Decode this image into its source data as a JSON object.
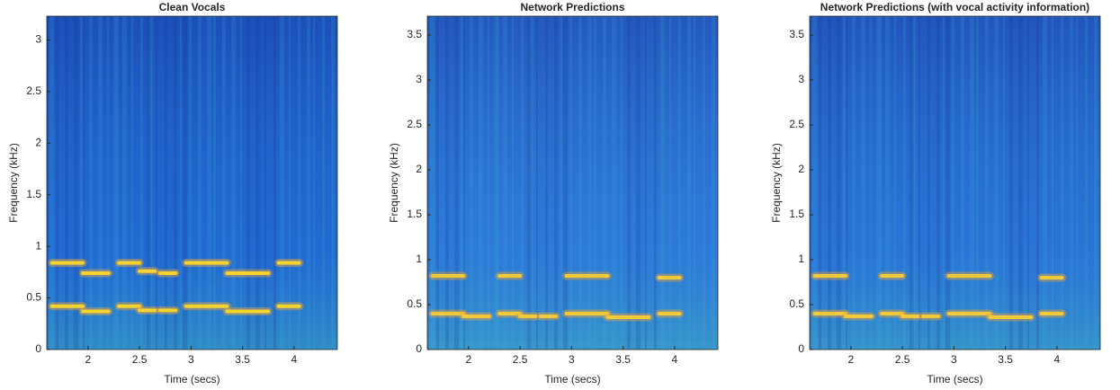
{
  "chart_data": [
    {
      "type": "spectrogram",
      "title": "Clean Vocals",
      "x_label": "Time (secs)",
      "y_label": "Frequency (kHz)",
      "xlim": [
        1.6,
        4.42
      ],
      "xticks": [
        2,
        2.5,
        3,
        3.5,
        4
      ],
      "ylim": [
        0,
        3.23
      ],
      "yticks": [
        0,
        0.5,
        1,
        1.5,
        2,
        2.5,
        3
      ],
      "background_color": "#1f62d0",
      "trace_color": "#f7d330",
      "traces": [
        {
          "x": [
            1.65,
            1.95
          ],
          "y": [
            0.42,
            0.42
          ]
        },
        {
          "x": [
            1.95,
            2.2
          ],
          "y": [
            0.37,
            0.37
          ]
        },
        {
          "x": [
            2.3,
            2.5
          ],
          "y": [
            0.42,
            0.42
          ]
        },
        {
          "x": [
            2.5,
            2.65
          ],
          "y": [
            0.38,
            0.38
          ]
        },
        {
          "x": [
            2.7,
            2.85
          ],
          "y": [
            0.38,
            0.38
          ]
        },
        {
          "x": [
            2.95,
            3.35
          ],
          "y": [
            0.42,
            0.42
          ]
        },
        {
          "x": [
            3.35,
            3.75
          ],
          "y": [
            0.37,
            0.37
          ]
        },
        {
          "x": [
            3.85,
            4.05
          ],
          "y": [
            0.42,
            0.42
          ]
        },
        {
          "x": [
            1.65,
            1.95
          ],
          "y": [
            0.84,
            0.84
          ]
        },
        {
          "x": [
            1.95,
            2.2
          ],
          "y": [
            0.74,
            0.74
          ]
        },
        {
          "x": [
            2.3,
            2.5
          ],
          "y": [
            0.84,
            0.84
          ]
        },
        {
          "x": [
            2.5,
            2.65
          ],
          "y": [
            0.76,
            0.76
          ]
        },
        {
          "x": [
            2.7,
            2.85
          ],
          "y": [
            0.74,
            0.74
          ]
        },
        {
          "x": [
            2.95,
            3.35
          ],
          "y": [
            0.84,
            0.84
          ]
        },
        {
          "x": [
            3.35,
            3.75
          ],
          "y": [
            0.74,
            0.74
          ]
        },
        {
          "x": [
            3.85,
            4.05
          ],
          "y": [
            0.84,
            0.84
          ]
        }
      ]
    },
    {
      "type": "spectrogram",
      "title": "Network Predictions",
      "x_label": "Time (secs)",
      "y_label": "Frequency (kHz)",
      "xlim": [
        1.6,
        4.42
      ],
      "xticks": [
        2,
        2.5,
        3,
        3.5,
        4
      ],
      "ylim": [
        0,
        3.71
      ],
      "yticks": [
        0,
        0.5,
        1,
        1.5,
        2,
        2.5,
        3,
        3.5
      ],
      "background_color": "#2f78d8",
      "trace_color": "#f4c93a",
      "traces": [
        {
          "x": [
            1.65,
            1.95
          ],
          "y": [
            0.4,
            0.4
          ]
        },
        {
          "x": [
            1.95,
            2.2
          ],
          "y": [
            0.37,
            0.37
          ]
        },
        {
          "x": [
            2.3,
            2.5
          ],
          "y": [
            0.4,
            0.4
          ]
        },
        {
          "x": [
            2.5,
            2.65
          ],
          "y": [
            0.37,
            0.37
          ]
        },
        {
          "x": [
            2.7,
            2.85
          ],
          "y": [
            0.37,
            0.37
          ]
        },
        {
          "x": [
            2.95,
            3.35
          ],
          "y": [
            0.4,
            0.4
          ]
        },
        {
          "x": [
            3.35,
            3.75
          ],
          "y": [
            0.36,
            0.36
          ]
        },
        {
          "x": [
            3.85,
            4.05
          ],
          "y": [
            0.4,
            0.4
          ]
        },
        {
          "x": [
            1.65,
            1.95
          ],
          "y": [
            0.82,
            0.82
          ]
        },
        {
          "x": [
            2.3,
            2.5
          ],
          "y": [
            0.82,
            0.82
          ]
        },
        {
          "x": [
            2.95,
            3.35
          ],
          "y": [
            0.82,
            0.82
          ]
        },
        {
          "x": [
            3.85,
            4.05
          ],
          "y": [
            0.8,
            0.8
          ]
        }
      ]
    },
    {
      "type": "spectrogram",
      "title": "Network Predictions (with vocal activity information)",
      "x_label": "Time (secs)",
      "y_label": "Frequency (kHz)",
      "xlim": [
        1.6,
        4.42
      ],
      "xticks": [
        2,
        2.5,
        3,
        3.5,
        4
      ],
      "ylim": [
        0,
        3.71
      ],
      "yticks": [
        0,
        0.5,
        1,
        1.5,
        2,
        2.5,
        3,
        3.5
      ],
      "background_color": "#2a70d6",
      "trace_color": "#f4c93a",
      "traces": [
        {
          "x": [
            1.65,
            1.95
          ],
          "y": [
            0.4,
            0.4
          ]
        },
        {
          "x": [
            1.95,
            2.2
          ],
          "y": [
            0.37,
            0.37
          ]
        },
        {
          "x": [
            2.3,
            2.5
          ],
          "y": [
            0.4,
            0.4
          ]
        },
        {
          "x": [
            2.5,
            2.65
          ],
          "y": [
            0.37,
            0.37
          ]
        },
        {
          "x": [
            2.7,
            2.85
          ],
          "y": [
            0.37,
            0.37
          ]
        },
        {
          "x": [
            2.95,
            3.35
          ],
          "y": [
            0.4,
            0.4
          ]
        },
        {
          "x": [
            3.35,
            3.75
          ],
          "y": [
            0.36,
            0.36
          ]
        },
        {
          "x": [
            3.85,
            4.05
          ],
          "y": [
            0.4,
            0.4
          ]
        },
        {
          "x": [
            1.65,
            1.95
          ],
          "y": [
            0.82,
            0.82
          ]
        },
        {
          "x": [
            2.3,
            2.5
          ],
          "y": [
            0.82,
            0.82
          ]
        },
        {
          "x": [
            2.95,
            3.35
          ],
          "y": [
            0.82,
            0.82
          ]
        },
        {
          "x": [
            3.85,
            4.05
          ],
          "y": [
            0.8,
            0.8
          ]
        }
      ]
    }
  ]
}
